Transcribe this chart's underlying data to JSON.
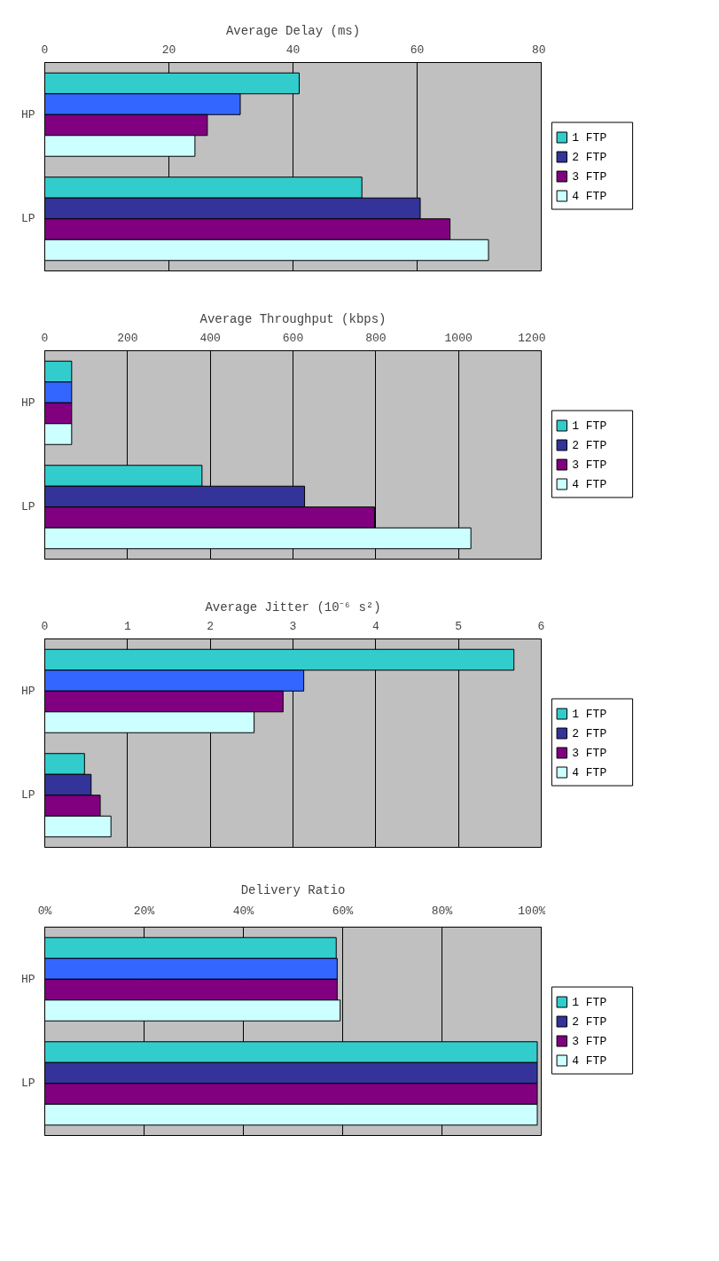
{
  "chart_data": [
    {
      "type": "bar",
      "orientation": "horizontal",
      "title": "Average Delay (ms)",
      "categories": [
        "HP",
        "LP"
      ],
      "xlim": [
        0,
        80
      ],
      "xticks": [
        0,
        20,
        40,
        60,
        80
      ],
      "grid": "x",
      "legend": "right",
      "series": [
        {
          "name": "1 FTP",
          "color": "#33cccc",
          "values": [
            41.0,
            51.1
          ]
        },
        {
          "name": "2 FTP",
          "color": "#333399",
          "colors": [
            "#3366ff",
            null
          ],
          "values": [
            31.5,
            60.5
          ]
        },
        {
          "name": "3 FTP",
          "color": "#800080",
          "values": [
            26.2,
            65.3
          ]
        },
        {
          "name": "4 FTP",
          "color": "#ccffff",
          "values": [
            24.2,
            71.5
          ]
        }
      ]
    },
    {
      "type": "bar",
      "orientation": "horizontal",
      "title": "Average Throughput (kbps)",
      "categories": [
        "HP",
        "LP"
      ],
      "xlim": [
        0,
        1200
      ],
      "xticks": [
        0,
        200,
        400,
        600,
        800,
        1000,
        1200
      ],
      "grid": "x",
      "legend": "right",
      "series": [
        {
          "name": "1 FTP",
          "color": "#33cccc",
          "values": [
            65,
            380
          ]
        },
        {
          "name": "2 FTP",
          "color": "#333399",
          "colors": [
            "#3366ff",
            null
          ],
          "values": [
            65,
            628
          ]
        },
        {
          "name": "3 FTP",
          "color": "#800080",
          "values": [
            65,
            797
          ]
        },
        {
          "name": "4 FTP",
          "color": "#ccffff",
          "values": [
            65,
            1030
          ]
        }
      ]
    },
    {
      "type": "bar",
      "orientation": "horizontal",
      "title": "Average Jitter (10⁻⁶ s²)",
      "categories": [
        "HP",
        "LP"
      ],
      "xlim": [
        0,
        6
      ],
      "xticks": [
        0,
        1,
        2,
        3,
        4,
        5,
        6
      ],
      "grid": "x",
      "legend": "right",
      "series": [
        {
          "name": "1 FTP",
          "color": "#33cccc",
          "values": [
            5.67,
            0.48
          ]
        },
        {
          "name": "2 FTP",
          "color": "#333399",
          "colors": [
            "#3366ff",
            null
          ],
          "values": [
            3.13,
            0.56
          ]
        },
        {
          "name": "3 FTP",
          "color": "#800080",
          "values": [
            2.88,
            0.67
          ]
        },
        {
          "name": "4 FTP",
          "color": "#ccffff",
          "values": [
            2.53,
            0.8
          ]
        }
      ]
    },
    {
      "type": "bar",
      "orientation": "horizontal",
      "title": "Delivery Ratio",
      "categories": [
        "HP",
        "LP"
      ],
      "xlim": [
        0,
        100
      ],
      "xticks": [
        {
          "value": 0,
          "label": "0%"
        },
        {
          "value": 20,
          "label": "20%"
        },
        {
          "value": 40,
          "label": "40%"
        },
        {
          "value": 60,
          "label": "60%"
        },
        {
          "value": 80,
          "label": "80%"
        },
        {
          "value": 100,
          "label": "100%"
        }
      ],
      "grid": "x",
      "legend": "right",
      "series": [
        {
          "name": "1 FTP",
          "color": "#33cccc",
          "values": [
            58.7,
            99.2
          ]
        },
        {
          "name": "2 FTP",
          "color": "#333399",
          "colors": [
            "#3366ff",
            null
          ],
          "values": [
            58.9,
            99.2
          ]
        },
        {
          "name": "3 FTP",
          "color": "#800080",
          "values": [
            58.9,
            99.2
          ]
        },
        {
          "name": "4 FTP",
          "color": "#ccffff",
          "values": [
            59.5,
            99.2
          ]
        }
      ]
    }
  ]
}
